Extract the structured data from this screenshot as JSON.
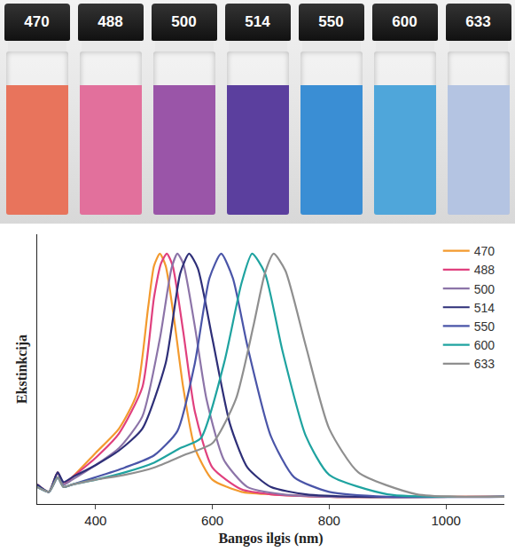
{
  "vials": [
    {
      "label": "470",
      "color": "#e8745c"
    },
    {
      "label": "488",
      "color": "#e2709c"
    },
    {
      "label": "500",
      "color": "#9a55a8"
    },
    {
      "label": "514",
      "color": "#5b3f9e"
    },
    {
      "label": "550",
      "color": "#3a8ed4"
    },
    {
      "label": "600",
      "color": "#4fa6da"
    },
    {
      "label": "633",
      "color": "#b4c4e2"
    }
  ],
  "chart_data": {
    "type": "line",
    "x_label": "Bangos ilgis (nm)",
    "y_label": "Ekstinkcija",
    "xlim": [
      300,
      1100
    ],
    "xticks": [
      400,
      600,
      800,
      1000
    ],
    "ylim": [
      -0.03,
      1.08
    ],
    "tick_labels": "x",
    "grid": false,
    "legend": "upper right",
    "series": [
      {
        "name": "470",
        "color": "#f39a2e",
        "line_style": "solid",
        "x": [
          300,
          320,
          335,
          345,
          360,
          400,
          440,
          470,
          490,
          500,
          510,
          520,
          535,
          550,
          570,
          600,
          650,
          700,
          800,
          1100
        ],
        "values": [
          0.05,
          0.02,
          0.1,
          0.05,
          0.08,
          0.18,
          0.28,
          0.42,
          0.78,
          0.95,
          1.0,
          0.95,
          0.72,
          0.45,
          0.2,
          0.07,
          0.02,
          0.01,
          0,
          0
        ]
      },
      {
        "name": "488",
        "color": "#e0407e",
        "line_style": "solid",
        "x": [
          300,
          320,
          335,
          345,
          360,
          400,
          440,
          480,
          500,
          512,
          522,
          532,
          550,
          570,
          600,
          650,
          700,
          800,
          1100
        ],
        "values": [
          0.05,
          0.02,
          0.1,
          0.05,
          0.08,
          0.16,
          0.26,
          0.45,
          0.82,
          0.96,
          1.0,
          0.95,
          0.68,
          0.35,
          0.12,
          0.03,
          0.01,
          0,
          0
        ]
      },
      {
        "name": "500",
        "color": "#8c74a8",
        "line_style": "solid",
        "x": [
          300,
          320,
          335,
          345,
          360,
          400,
          440,
          480,
          510,
          530,
          540,
          550,
          570,
          590,
          620,
          660,
          720,
          800,
          1100
        ],
        "values": [
          0.05,
          0.02,
          0.1,
          0.05,
          0.07,
          0.13,
          0.2,
          0.33,
          0.65,
          0.94,
          1.0,
          0.96,
          0.7,
          0.4,
          0.15,
          0.04,
          0.01,
          0,
          0
        ]
      },
      {
        "name": "514",
        "color": "#2e2f78",
        "line_style": "solid",
        "x": [
          300,
          320,
          335,
          345,
          360,
          400,
          440,
          480,
          520,
          545,
          560,
          575,
          600,
          630,
          660,
          700,
          760,
          850,
          1100
        ],
        "values": [
          0.05,
          0.02,
          0.1,
          0.06,
          0.08,
          0.13,
          0.19,
          0.28,
          0.55,
          0.92,
          1.0,
          0.94,
          0.65,
          0.3,
          0.12,
          0.04,
          0.01,
          0,
          0
        ]
      },
      {
        "name": "550",
        "color": "#4a55a8",
        "line_style": "solid",
        "x": [
          300,
          320,
          335,
          345,
          360,
          400,
          450,
          500,
          540,
          570,
          595,
          615,
          635,
          660,
          700,
          740,
          800,
          900,
          1100
        ],
        "values": [
          0.04,
          0.02,
          0.08,
          0.04,
          0.05,
          0.08,
          0.12,
          0.17,
          0.27,
          0.55,
          0.9,
          1.0,
          0.9,
          0.62,
          0.25,
          0.08,
          0.02,
          0,
          0
        ]
      },
      {
        "name": "600",
        "color": "#1fa3a0",
        "line_style": "solid",
        "x": [
          300,
          320,
          335,
          345,
          360,
          400,
          450,
          500,
          545,
          580,
          620,
          650,
          668,
          690,
          720,
          760,
          800,
          900,
          1100
        ],
        "values": [
          0.04,
          0.02,
          0.08,
          0.04,
          0.05,
          0.07,
          0.1,
          0.14,
          0.2,
          0.24,
          0.55,
          0.88,
          1.0,
          0.92,
          0.6,
          0.25,
          0.09,
          0.01,
          0
        ]
      },
      {
        "name": "633",
        "color": "#8f8f8f",
        "line_style": "solid",
        "x": [
          300,
          320,
          335,
          345,
          360,
          400,
          450,
          500,
          550,
          600,
          640,
          670,
          690,
          705,
          725,
          760,
          800,
          850,
          950,
          1100
        ],
        "values": [
          0.04,
          0.02,
          0.08,
          0.04,
          0.05,
          0.07,
          0.09,
          0.12,
          0.17,
          0.22,
          0.4,
          0.7,
          0.92,
          1.0,
          0.93,
          0.62,
          0.28,
          0.1,
          0.01,
          0
        ]
      }
    ]
  }
}
